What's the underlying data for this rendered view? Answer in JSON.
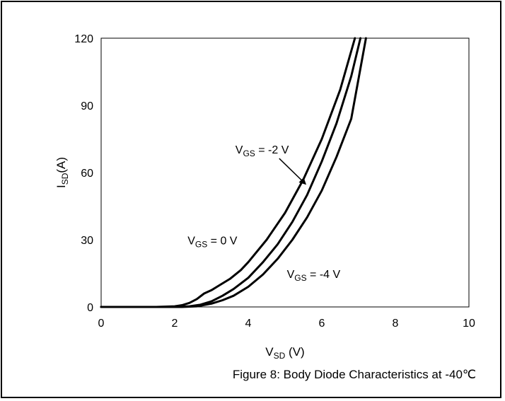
{
  "chart_data": {
    "type": "line",
    "caption": "Figure 8: Body Diode Characteristics at -40℃",
    "xlabel": {
      "main": "V",
      "sub": "SD",
      "unit": " (V)"
    },
    "ylabel": {
      "main": "I",
      "sub": "SD",
      "unit": "(A)"
    },
    "xlim": [
      0,
      10
    ],
    "ylim": [
      0,
      120
    ],
    "x_ticks": [
      0,
      2,
      4,
      6,
      8,
      10
    ],
    "y_ticks": [
      0,
      30,
      60,
      90,
      120
    ],
    "grid": false,
    "line_color": "#000000",
    "series": [
      {
        "x": [
          0,
          1.5,
          2.0,
          2.2,
          2.4,
          2.6,
          2.8,
          3.0,
          3.2,
          3.5,
          3.8,
          4.0,
          4.5,
          5.0,
          5.5,
          6.0,
          6.5,
          6.9
        ],
        "y": [
          0,
          0,
          0.3,
          0.8,
          1.8,
          3.5,
          6,
          7.5,
          9.5,
          12.5,
          16.5,
          20,
          30,
          42,
          57,
          75,
          97,
          120
        ]
      },
      {
        "x": [
          0,
          2.0,
          2.4,
          2.7,
          3.0,
          3.3,
          3.6,
          4.0,
          4.4,
          4.8,
          5.2,
          5.6,
          6.0,
          6.4,
          6.8,
          7.05
        ],
        "y": [
          0,
          0,
          0.3,
          1,
          2.5,
          5,
          8,
          13,
          20,
          28,
          38,
          50,
          65,
          82,
          103,
          120
        ]
      },
      {
        "x": [
          0,
          2.2,
          2.6,
          3.0,
          3.3,
          3.6,
          4.0,
          4.4,
          4.8,
          5.2,
          5.6,
          6.0,
          6.4,
          6.8,
          7.2
        ],
        "y": [
          0,
          0,
          0.3,
          1.5,
          3,
          5,
          9,
          14.5,
          21.5,
          30,
          40,
          52,
          67,
          84,
          120
        ]
      }
    ],
    "annotations": [
      {
        "label": "V",
        "sub": "GS",
        "tail": " = 0 V",
        "x": 2.35,
        "y": 28
      },
      {
        "label": "V",
        "sub": "GS",
        "tail": " = -2 V",
        "x": 3.65,
        "y": 68.5,
        "arrow_to": [
          5.55,
          55
        ]
      },
      {
        "label": "V",
        "sub": "GS",
        "tail": " = -4 V",
        "x": 5.05,
        "y": 13
      }
    ]
  }
}
